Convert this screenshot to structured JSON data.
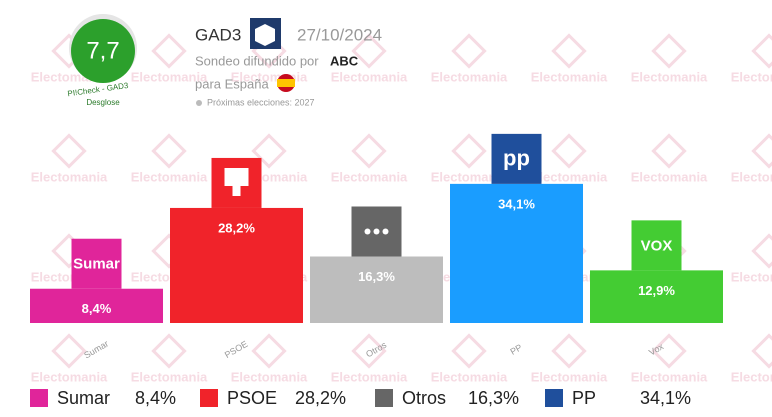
{
  "header": {
    "score": "7,7",
    "score_caption": "PI!Check - GAD3",
    "score_link": "Desglose",
    "pollster": "GAD3",
    "date": "27/10/2024",
    "published_by": "Sondeo difundido por",
    "media": "ABC",
    "region": "para España",
    "next_election": "Próximas elecciones: 2027"
  },
  "watermark": "Electomania",
  "chart_data": {
    "type": "bar",
    "categories": [
      "Sumar",
      "PSOE",
      "Otros",
      "PP",
      "Vox"
    ],
    "values": [
      8.4,
      28.2,
      16.3,
      34.1,
      12.9
    ],
    "value_labels": [
      "8,4%",
      "28,2%",
      "16,3%",
      "34,1%",
      "12,9%"
    ],
    "colors": [
      "#e0259a",
      "#f0232a",
      "#bdbdbd",
      "#1a9dff",
      "#44cc33"
    ],
    "logo_text": {
      "Sumar": "Sumar",
      "PP": "pp",
      "Vox": "VOX"
    }
  }
}
